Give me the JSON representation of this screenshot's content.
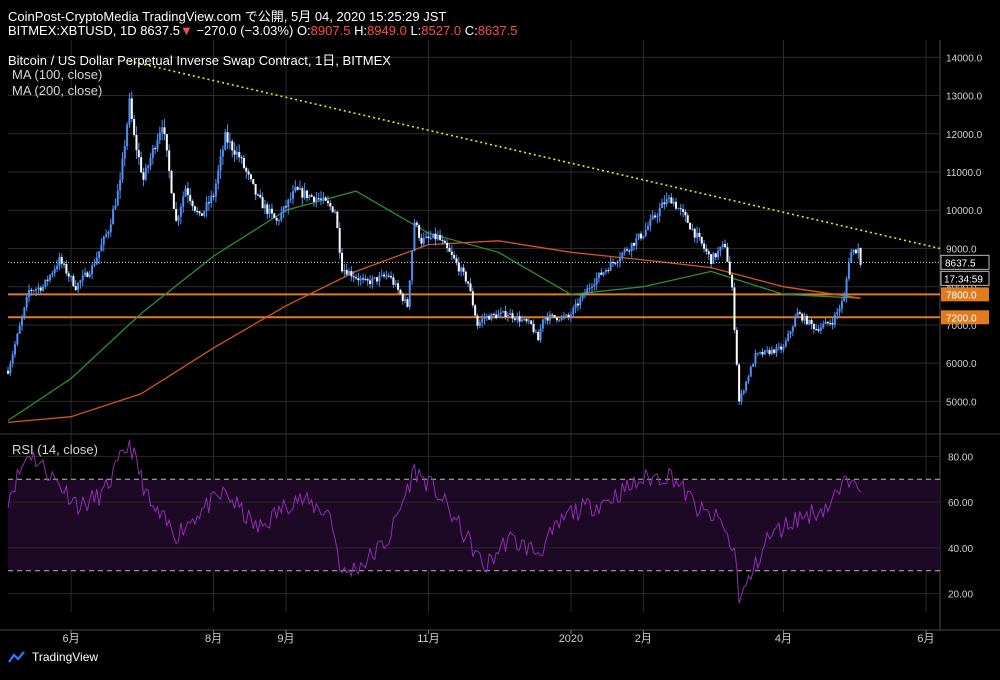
{
  "header": {
    "line1": "CoinPost-CryptoMedia TradingView.com で公開, 5月 04, 2020 15:25:29 JST",
    "symbol": "BITMEX:XBTUSD, 1D 8637.5",
    "change": "−270.0 (−3.03%)",
    "o_label": "O:",
    "o_value": "8907.5",
    "h_label": "H:",
    "h_value": "8949.0",
    "l_label": "L:",
    "l_value": "8527.0",
    "c_label": "C:",
    "c_value": "8637.5"
  },
  "legend": {
    "title": "Bitcoin / US Dollar Perpetual Inverse Swap Contract, 1日, BITMEX",
    "ma100": "MA (100, close)",
    "ma200": "MA (200, close)",
    "rsi": "RSI (14, close)"
  },
  "price_labels": {
    "last": "8637.5",
    "countdown": "17:34:59",
    "level_high": "7800.0",
    "level_low": "7200.0"
  },
  "footer": {
    "brand": "TradingView"
  },
  "colors": {
    "background": "#000000",
    "candle": "#4f8ff7",
    "ma100": "#2f8f2f",
    "ma200": "#d4561a",
    "trendline": "#e6e619",
    "level": "#e07b1f",
    "rsi_line": "#8f2fb0",
    "rsi_band": "#1d0826",
    "grid": "#2a2a2a"
  },
  "chart_data": [
    {
      "type": "candlestick",
      "title": "Bitcoin / US Dollar Perpetual Inverse Swap Contract, 1日, BITMEX",
      "x_tick_labels": [
        "6月",
        "8月",
        "9月",
        "11月",
        "2020",
        "2月",
        "4月",
        "6月"
      ],
      "x_tick_dates": [
        "2019-06-01",
        "2019-08-01",
        "2019-09-01",
        "2019-11-01",
        "2020-01-01",
        "2020-02-01",
        "2020-04-01",
        "2020-06-01"
      ],
      "x_range": [
        "2019-05-05",
        "2020-06-07"
      ],
      "y_tick_labels": [
        "5000.0",
        "6000.0",
        "7000.0",
        "8000.0",
        "9000.0",
        "10000.0",
        "11000.0",
        "12000.0",
        "13000.0",
        "14000.0"
      ],
      "ylim": [
        4200,
        14400
      ],
      "grid": true,
      "close_series": {
        "x": [
          "2019-05-05",
          "2019-05-12",
          "2019-05-14",
          "2019-05-20",
          "2019-05-27",
          "2019-06-03",
          "2019-06-10",
          "2019-06-17",
          "2019-06-22",
          "2019-06-26",
          "2019-06-28",
          "2019-07-02",
          "2019-07-10",
          "2019-07-16",
          "2019-07-20",
          "2019-07-26",
          "2019-08-01",
          "2019-08-06",
          "2019-08-12",
          "2019-08-20",
          "2019-08-28",
          "2019-09-05",
          "2019-09-15",
          "2019-09-22",
          "2019-09-25",
          "2019-10-05",
          "2019-10-15",
          "2019-10-23",
          "2019-10-26",
          "2019-10-29",
          "2019-11-05",
          "2019-11-12",
          "2019-11-18",
          "2019-11-22",
          "2019-11-25",
          "2019-12-05",
          "2019-12-15",
          "2019-12-18",
          "2019-12-20",
          "2019-12-31",
          "2020-01-10",
          "2020-01-20",
          "2020-02-01",
          "2020-02-10",
          "2020-02-13",
          "2020-02-20",
          "2020-03-01",
          "2020-03-07",
          "2020-03-10",
          "2020-03-12",
          "2020-03-13",
          "2020-03-20",
          "2020-04-01",
          "2020-04-07",
          "2020-04-15",
          "2020-04-22",
          "2020-04-27",
          "2020-04-29",
          "2020-04-30",
          "2020-05-03",
          "2020-05-04"
        ],
        "y": [
          5800,
          7400,
          7900,
          8000,
          8700,
          8000,
          8500,
          9500,
          10700,
          12800,
          11900,
          10800,
          12300,
          9700,
          10600,
          9800,
          10400,
          11900,
          11400,
          10300,
          9700,
          10500,
          10300,
          10000,
          8500,
          8100,
          8300,
          7500,
          9700,
          9200,
          9300,
          8700,
          8100,
          7000,
          7200,
          7300,
          7000,
          6600,
          7200,
          7200,
          8100,
          8700,
          9400,
          10200,
          10300,
          9700,
          8700,
          9100,
          7900,
          6000,
          5000,
          6200,
          6400,
          7300,
          6900,
          7100,
          7700,
          8700,
          8900,
          9000,
          8637.5
        ]
      },
      "series": [
        {
          "name": "MA (100, close)",
          "x": [
            "2019-05-05",
            "2019-06-01",
            "2019-07-01",
            "2019-08-01",
            "2019-09-01",
            "2019-10-01",
            "2019-11-01",
            "2019-12-01",
            "2020-01-01",
            "2020-02-01",
            "2020-03-01",
            "2020-04-01",
            "2020-05-04"
          ],
          "y": [
            4500,
            5600,
            7300,
            8800,
            10000,
            10500,
            9400,
            8900,
            7800,
            8000,
            8400,
            7800,
            7700
          ]
        },
        {
          "name": "MA (200, close)",
          "x": [
            "2019-05-05",
            "2019-06-01",
            "2019-07-01",
            "2019-08-01",
            "2019-09-01",
            "2019-10-01",
            "2019-11-01",
            "2019-12-01",
            "2020-01-01",
            "2020-02-01",
            "2020-03-01",
            "2020-04-01",
            "2020-05-04"
          ],
          "y": [
            4450,
            4600,
            5200,
            6400,
            7500,
            8400,
            9100,
            9200,
            8900,
            8700,
            8500,
            8000,
            7700
          ]
        }
      ],
      "annotations": [
        {
          "type": "trendline",
          "style": "dotted",
          "x": [
            "2019-06-26",
            "2020-06-07"
          ],
          "y": [
            13900,
            9000
          ]
        },
        {
          "type": "horizontal_level",
          "y": 7800,
          "label": "7800.0"
        },
        {
          "type": "horizontal_level",
          "y": 7200,
          "label": "7200.0"
        },
        {
          "type": "last_price",
          "y": 8637.5,
          "label": "8637.5"
        }
      ]
    },
    {
      "type": "line",
      "title": "RSI (14, close)",
      "y_tick_labels": [
        "20.00",
        "40.00",
        "60.00",
        "80.00"
      ],
      "ylim": [
        12,
        88
      ],
      "bands": [
        30,
        70
      ],
      "series": [
        {
          "name": "RSI (14, close)",
          "x": [
            "2019-05-05",
            "2019-05-14",
            "2019-05-25",
            "2019-06-05",
            "2019-06-15",
            "2019-06-26",
            "2019-07-05",
            "2019-07-16",
            "2019-07-25",
            "2019-08-06",
            "2019-08-20",
            "2019-09-05",
            "2019-09-20",
            "2019-09-25",
            "2019-10-05",
            "2019-10-15",
            "2019-10-26",
            "2019-11-05",
            "2019-11-20",
            "2019-11-25",
            "2019-12-05",
            "2019-12-18",
            "2019-12-31",
            "2020-01-15",
            "2020-02-01",
            "2020-02-13",
            "2020-02-25",
            "2020-03-05",
            "2020-03-12",
            "2020-03-13",
            "2020-03-25",
            "2020-04-05",
            "2020-04-20",
            "2020-04-29",
            "2020-05-01",
            "2020-05-04"
          ],
          "y": [
            62,
            82,
            70,
            58,
            64,
            86,
            58,
            46,
            55,
            64,
            48,
            62,
            55,
            28,
            34,
            44,
            74,
            64,
            40,
            31,
            44,
            38,
            55,
            60,
            70,
            72,
            56,
            52,
            35,
            16,
            44,
            52,
            58,
            70,
            74,
            68
          ]
        }
      ]
    }
  ]
}
